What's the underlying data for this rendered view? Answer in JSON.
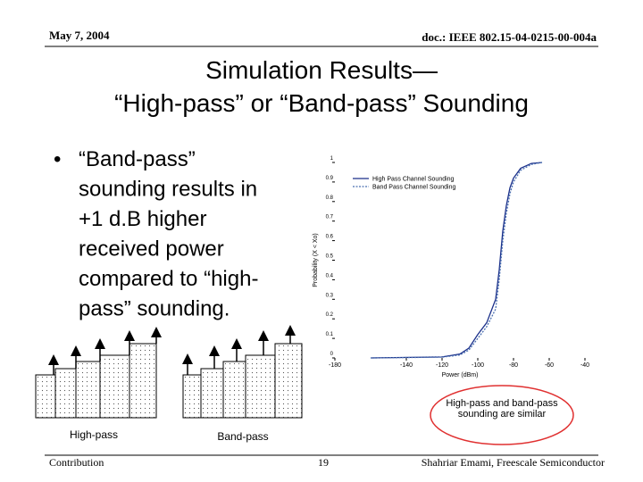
{
  "header": {
    "date": "May 7, 2004",
    "doc": "doc.: IEEE 802.15-04-0215-00-004a"
  },
  "title": [
    "Simulation Results—",
    "“High-pass” or “Band-pass” Sounding"
  ],
  "bullet": [
    "“Band-pass”",
    "sounding results in",
    "+1 d.B higher",
    "received power",
    "compared to “high-",
    "pass” sounding."
  ],
  "chart_data": {
    "type": "line",
    "xlabel": "Power (dBm)",
    "ylabel": "Probability (X < Xo)",
    "x": [
      -160,
      -120,
      -110,
      -105,
      -100,
      -95,
      -90,
      -88,
      -86,
      -84,
      -82,
      -80,
      -76,
      -70,
      -64
    ],
    "series": [
      {
        "name": "High Pass Channel Sounding",
        "color": "#1a2f8a",
        "dash": false,
        "values": [
          0,
          0.005,
          0.02,
          0.05,
          0.12,
          0.18,
          0.3,
          0.45,
          0.65,
          0.78,
          0.87,
          0.92,
          0.97,
          0.995,
          1
        ]
      },
      {
        "name": "Band Pass Channel Sounding",
        "color": "#4a6fb0",
        "dash": true,
        "values": [
          0,
          0.004,
          0.015,
          0.04,
          0.1,
          0.16,
          0.25,
          0.4,
          0.6,
          0.74,
          0.84,
          0.9,
          0.96,
          0.99,
          1
        ]
      }
    ],
    "xlim": [
      -180,
      -40
    ],
    "xticks": [
      -180,
      -140,
      -120,
      -100,
      -80,
      -60,
      -40
    ],
    "ylim": [
      0,
      1
    ],
    "yticks": [
      0,
      0.1,
      0.2,
      0.3,
      0.4,
      0.5,
      0.6,
      0.7,
      0.8,
      0.9,
      1
    ],
    "legend": "top-left"
  },
  "diagrams": [
    "High-pass",
    "Band-pass"
  ],
  "callout": "High-pass and band-pass sounding are similar",
  "footer": {
    "left": "Contribution",
    "page": "19",
    "right": "Shahriar Emami, Freescale Semiconductor"
  }
}
